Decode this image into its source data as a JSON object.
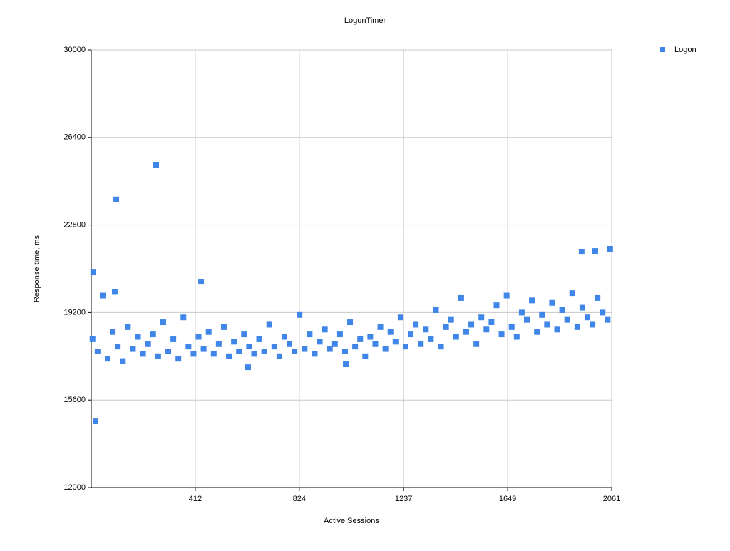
{
  "chart_data": {
    "type": "scatter",
    "title": "LogonTimer",
    "x_label": "Active Sessions",
    "y_label": "Response time, ms",
    "xlim": [
      0,
      2061
    ],
    "ylim": [
      12000,
      30000
    ],
    "xticks": [
      412,
      824,
      1237,
      1649,
      2061
    ],
    "yticks": [
      12000,
      15600,
      19200,
      22800,
      26400,
      30000
    ],
    "grid": true,
    "legend": "upper right",
    "series": [
      {
        "name": "Logon",
        "color": "#3f86e8",
        "x": [
          5,
          25,
          45,
          65,
          85,
          105,
          125,
          145,
          165,
          185,
          205,
          225,
          245,
          265,
          285,
          305,
          325,
          345,
          365,
          385,
          405,
          425,
          445,
          465,
          485,
          505,
          525,
          545,
          565,
          585,
          605,
          625,
          645,
          665,
          685,
          705,
          725,
          745,
          765,
          785,
          805,
          825,
          845,
          865,
          885,
          905,
          925,
          945,
          965,
          985,
          1005,
          1025,
          1045,
          1065,
          1085,
          1105,
          1125,
          1145,
          1165,
          1185,
          1205,
          1225,
          1245,
          1265,
          1285,
          1305,
          1325,
          1345,
          1365,
          1385,
          1405,
          1425,
          1445,
          1465,
          1485,
          1505,
          1525,
          1545,
          1565,
          1585,
          1605,
          1625,
          1645,
          1665,
          1685,
          1705,
          1725,
          1745,
          1765,
          1785,
          1805,
          1825,
          1845,
          1865,
          1885,
          1905,
          1925,
          1945,
          1965,
          1985,
          2005,
          2025,
          2045,
          8,
          99,
          257,
          17,
          435,
          2055,
          1942,
          1996,
          621,
          1008,
          93
        ],
        "values": [
          18100,
          17600,
          19900,
          17300,
          18400,
          17800,
          17200,
          18600,
          17700,
          18200,
          17500,
          17900,
          18300,
          17400,
          18800,
          17600,
          18100,
          17300,
          19000,
          17800,
          17500,
          18200,
          17700,
          18400,
          17500,
          17900,
          18600,
          17400,
          18000,
          17600,
          18300,
          17800,
          17500,
          18100,
          17600,
          18700,
          17800,
          17400,
          18200,
          17900,
          17600,
          19100,
          17700,
          18300,
          17500,
          18000,
          18500,
          17700,
          17900,
          18300,
          17600,
          18800,
          17800,
          18100,
          17400,
          18200,
          17900,
          18600,
          17700,
          18400,
          18000,
          19000,
          17800,
          18300,
          18700,
          17900,
          18500,
          18100,
          19300,
          17800,
          18600,
          18900,
          18200,
          19800,
          18400,
          18700,
          17900,
          19000,
          18500,
          18800,
          19500,
          18300,
          19900,
          18600,
          18200,
          19200,
          18900,
          19700,
          18400,
          19100,
          18700,
          19600,
          18500,
          19300,
          18900,
          20000,
          18600,
          19400,
          19000,
          18700,
          19800,
          19200,
          18900,
          20850,
          23850,
          25280,
          14725,
          20470,
          21820,
          21700,
          21730,
          16950,
          17070,
          20050
        ]
      }
    ]
  }
}
